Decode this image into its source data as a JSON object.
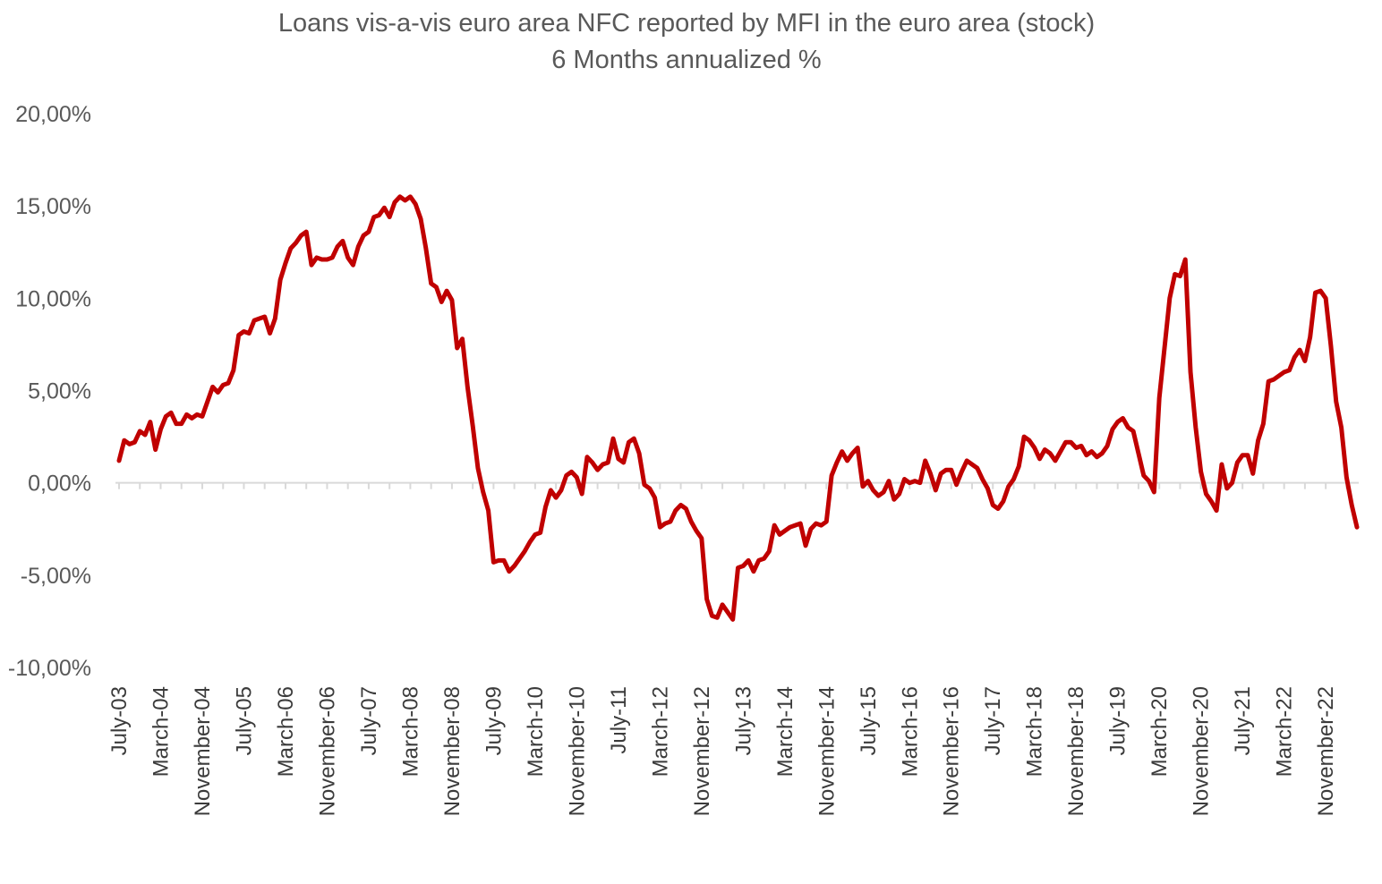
{
  "chart_data": {
    "type": "line",
    "title": "Loans vis-a-vis euro area NFC reported by MFI in the euro area (stock)",
    "subtitle": "6 Months annualized %",
    "xlabel": "",
    "ylabel": "",
    "ylim": [
      -10,
      20
    ],
    "yticks": [
      20,
      15,
      10,
      5,
      0,
      -5,
      -10
    ],
    "ytick_labels": [
      "20,00%",
      "15,00%",
      "10,00%",
      "5,00%",
      "0,00%",
      "-5,00%",
      "-10,00%"
    ],
    "xtick_labels": [
      "July-03",
      "March-04",
      "November-04",
      "July-05",
      "March-06",
      "November-06",
      "July-07",
      "March-08",
      "November-08",
      "July-09",
      "March-10",
      "November-10",
      "July-11",
      "March-12",
      "November-12",
      "July-13",
      "March-14",
      "November-14",
      "July-15",
      "March-16",
      "November-16",
      "July-17",
      "March-18",
      "November-18",
      "July-19",
      "March-20",
      "November-20",
      "July-21",
      "March-22",
      "November-22"
    ],
    "grid": false,
    "legend": "none",
    "line_color": "#c00000",
    "series": [
      {
        "name": "",
        "x_start": "2003-07",
        "x_step_months": 1,
        "values": [
          1.2,
          2.3,
          2.1,
          2.2,
          2.8,
          2.6,
          3.3,
          1.8,
          2.9,
          3.6,
          3.8,
          3.2,
          3.2,
          3.7,
          3.5,
          3.7,
          3.6,
          4.4,
          5.2,
          4.9,
          5.3,
          5.4,
          6.1,
          8.0,
          8.2,
          8.1,
          8.8,
          8.9,
          9.0,
          8.1,
          8.9,
          11.0,
          11.9,
          12.7,
          13.0,
          13.4,
          13.6,
          11.8,
          12.2,
          12.1,
          12.1,
          12.2,
          12.8,
          13.1,
          12.2,
          11.8,
          12.8,
          13.4,
          13.6,
          14.4,
          14.5,
          14.9,
          14.4,
          15.2,
          15.5,
          15.3,
          15.5,
          15.1,
          14.3,
          12.7,
          10.8,
          10.6,
          9.8,
          10.4,
          9.9,
          7.3,
          7.8,
          5.2,
          3.1,
          0.8,
          -0.5,
          -1.5,
          -4.3,
          -4.2,
          -4.2,
          -4.8,
          -4.5,
          -4.1,
          -3.7,
          -3.2,
          -2.8,
          -2.7,
          -1.3,
          -0.4,
          -0.8,
          -0.4,
          0.4,
          0.6,
          0.3,
          -0.6,
          1.4,
          1.1,
          0.7,
          1.0,
          1.1,
          2.4,
          1.3,
          1.1,
          2.2,
          2.4,
          1.6,
          -0.1,
          -0.3,
          -0.8,
          -2.4,
          -2.2,
          -2.1,
          -1.5,
          -1.2,
          -1.4,
          -2.1,
          -2.6,
          -3.0,
          -6.3,
          -7.2,
          -7.3,
          -6.6,
          -7.0,
          -7.4,
          -4.6,
          -4.5,
          -4.2,
          -4.8,
          -4.2,
          -4.1,
          -3.7,
          -2.3,
          -2.8,
          -2.6,
          -2.4,
          -2.3,
          -2.2,
          -3.4,
          -2.5,
          -2.2,
          -2.3,
          -2.1,
          0.4,
          1.1,
          1.7,
          1.2,
          1.6,
          1.9,
          -0.2,
          0.1,
          -0.4,
          -0.7,
          -0.5,
          0.1,
          -0.9,
          -0.6,
          0.2,
          0.0,
          0.1,
          0.0,
          1.2,
          0.5,
          -0.4,
          0.5,
          0.7,
          0.7,
          -0.1,
          0.6,
          1.2,
          1.0,
          0.8,
          0.2,
          -0.3,
          -1.2,
          -1.4,
          -1.0,
          -0.2,
          0.2,
          0.9,
          2.5,
          2.3,
          1.9,
          1.3,
          1.8,
          1.6,
          1.2,
          1.7,
          2.2,
          2.2,
          1.9,
          2.0,
          1.5,
          1.7,
          1.4,
          1.6,
          2.0,
          2.9,
          3.3,
          3.5,
          3.0,
          2.8,
          1.6,
          0.4,
          0.1,
          -0.5,
          4.6,
          7.3,
          10.0,
          11.3,
          11.2,
          12.1,
          6.0,
          3.0,
          0.6,
          -0.6,
          -1.0,
          -1.5,
          1.0,
          -0.3,
          0.0,
          1.1,
          1.5,
          1.5,
          0.5,
          2.3,
          3.2,
          5.5,
          5.6,
          5.8,
          6.0,
          6.1,
          6.8,
          7.2,
          6.6,
          7.9,
          10.3,
          10.4,
          10.0,
          7.4,
          4.4,
          3.0,
          0.3,
          -1.2,
          -2.4
        ]
      }
    ]
  }
}
